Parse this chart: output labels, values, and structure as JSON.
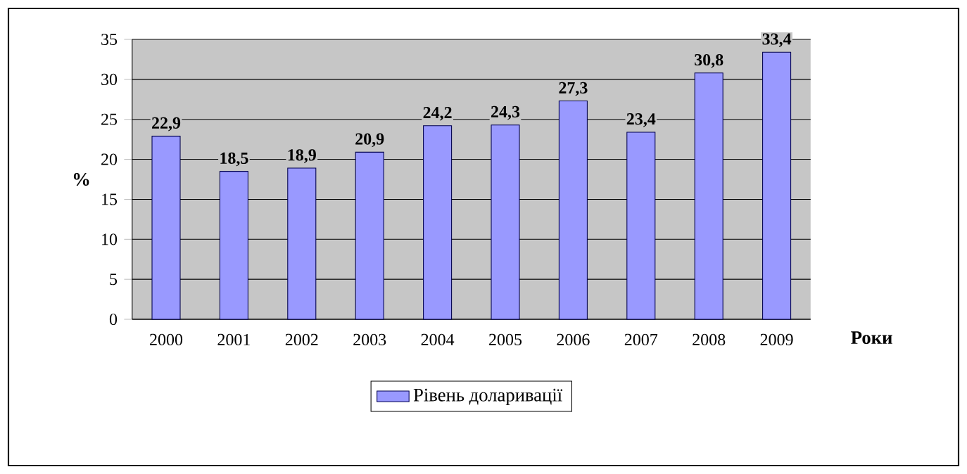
{
  "chart_data": {
    "type": "bar",
    "xlabel": "Роки",
    "ylabel": "%",
    "categories": [
      "2000",
      "2001",
      "2002",
      "2003",
      "2004",
      "2005",
      "2006",
      "2007",
      "2008",
      "2009"
    ],
    "series": [
      {
        "name": "Рівень доларивації",
        "color": "#9999ff",
        "values": [
          22.9,
          18.5,
          18.9,
          20.9,
          24.2,
          24.3,
          27.3,
          23.4,
          30.8,
          33.4
        ]
      }
    ],
    "value_labels": [
      "22,9",
      "18,5",
      "18,9",
      "20,9",
      "24,2",
      "24,3",
      "27,3",
      "23,4",
      "30,8",
      "33,4"
    ],
    "ylim": [
      0,
      35
    ],
    "yticks": [
      0,
      5,
      10,
      15,
      20,
      25,
      30,
      35
    ],
    "grid": "y",
    "legend": "bottom"
  }
}
